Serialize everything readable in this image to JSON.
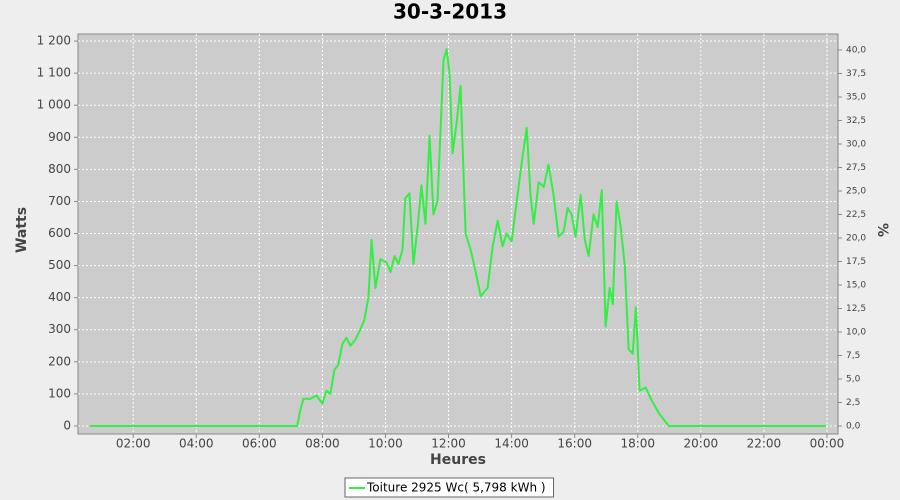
{
  "chart_data": {
    "type": "line",
    "title": "30-3-2013",
    "x_label": "Heures",
    "y_label": "Watts",
    "y2_label": "%",
    "grid": true,
    "background": "#cccccc",
    "legend": "bottom",
    "xlim": [
      0.25,
      24.35
    ],
    "xticks": [
      {
        "value": 2,
        "label": "02:00"
      },
      {
        "value": 4,
        "label": "04:00"
      },
      {
        "value": 6,
        "label": "06:00"
      },
      {
        "value": 8,
        "label": "08:00"
      },
      {
        "value": 10,
        "label": "10:00"
      },
      {
        "value": 12,
        "label": "12:00"
      },
      {
        "value": 14,
        "label": "14:00"
      },
      {
        "value": 16,
        "label": "16:00"
      },
      {
        "value": 18,
        "label": "18:00"
      },
      {
        "value": 20,
        "label": "20:00"
      },
      {
        "value": 22,
        "label": "22:00"
      },
      {
        "value": 24,
        "label": "00:00"
      }
    ],
    "ylim": [
      -25,
      1222
    ],
    "yticks": [
      0,
      100,
      200,
      300,
      400,
      500,
      600,
      700,
      800,
      900,
      {
        "value": 1000,
        "label": "1 000"
      },
      {
        "value": 1100,
        "label": "1 100"
      },
      {
        "value": 1200,
        "label": "1 200"
      }
    ],
    "y2lim": [
      -0.85,
      41.7
    ],
    "y2ticks": [
      {
        "value": 0,
        "label": "0,0"
      },
      {
        "value": 2.5,
        "label": "2,5"
      },
      {
        "value": 5,
        "label": "5,0"
      },
      {
        "value": 7.5,
        "label": "7,5"
      },
      {
        "value": 10,
        "label": "10,0"
      },
      {
        "value": 12.5,
        "label": "12,5"
      },
      {
        "value": 15,
        "label": "15,0"
      },
      {
        "value": 17.5,
        "label": "17,5"
      },
      {
        "value": 20,
        "label": "20,0"
      },
      {
        "value": 22.5,
        "label": "22,5"
      },
      {
        "value": 25,
        "label": "25,0"
      },
      {
        "value": 27.5,
        "label": "27,5"
      },
      {
        "value": 30,
        "label": "30,0"
      },
      {
        "value": 32.5,
        "label": "32,5"
      },
      {
        "value": 35,
        "label": "35,0"
      },
      {
        "value": 37.5,
        "label": "37,5"
      },
      {
        "value": 40,
        "label": "40,0"
      }
    ],
    "x": [
      0.63,
      7.2,
      7.3,
      7.4,
      7.62,
      7.81,
      8.0,
      8.13,
      8.25,
      8.38,
      8.5,
      8.63,
      8.76,
      8.89,
      9.05,
      9.2,
      9.33,
      9.46,
      9.56,
      9.68,
      9.84,
      10.03,
      10.16,
      10.29,
      10.41,
      10.54,
      10.63,
      10.76,
      10.89,
      11.02,
      11.14,
      11.27,
      11.4,
      11.52,
      11.65,
      11.78,
      11.84,
      11.94,
      12.03,
      12.13,
      12.25,
      12.38,
      12.54,
      12.7,
      12.86,
      13.02,
      13.24,
      13.4,
      13.56,
      13.71,
      13.84,
      14.0,
      14.16,
      14.32,
      14.48,
      14.6,
      14.7,
      14.86,
      15.02,
      15.17,
      15.33,
      15.49,
      15.65,
      15.78,
      15.9,
      16.03,
      16.19,
      16.32,
      16.44,
      16.6,
      16.73,
      16.86,
      16.98,
      17.11,
      17.21,
      17.33,
      17.46,
      17.59,
      17.71,
      17.84,
      17.94,
      18.06,
      18.25,
      18.44,
      18.67,
      18.98,
      23.97
    ],
    "series": [
      {
        "name": "Toiture 2925 Wc( 5,798 kWh )",
        "color": "#33ee44",
        "values": [
          0,
          0,
          50,
          85,
          85,
          95,
          70,
          110,
          100,
          175,
          190,
          255,
          275,
          250,
          270,
          300,
          330,
          400,
          580,
          430,
          520,
          510,
          480,
          530,
          505,
          550,
          710,
          725,
          505,
          620,
          750,
          630,
          905,
          660,
          700,
          1000,
          1140,
          1175,
          1100,
          850,
          940,
          1060,
          600,
          550,
          480,
          405,
          430,
          560,
          640,
          560,
          600,
          575,
          700,
          820,
          930,
          720,
          630,
          760,
          745,
          815,
          720,
          590,
          605,
          680,
          660,
          590,
          720,
          580,
          530,
          660,
          620,
          735,
          310,
          430,
          380,
          700,
          620,
          500,
          240,
          225,
          370,
          110,
          120,
          80,
          40,
          0,
          0
        ]
      }
    ]
  }
}
